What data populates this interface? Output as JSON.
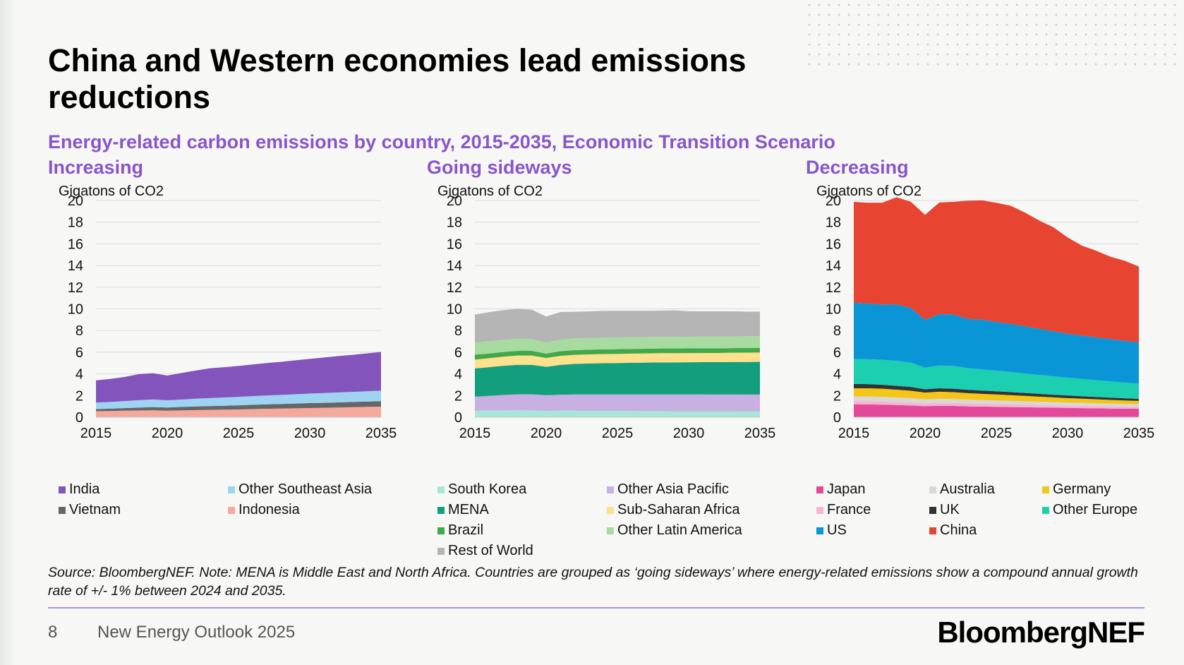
{
  "title": "China and Western economies lead emissions reductions",
  "subtitle": "Energy-related carbon emissions by country, 2015-2035, Economic Transition Scenario",
  "note": "Source: BloombergNEF. Note: MENA is Middle East and North Africa. Countries are grouped as ‘going sideways’ where energy-related emissions show a compound annual growth rate of +/- 1% between 2024 and 2035.",
  "footer": {
    "page_number": "8",
    "text": "New Energy Outlook 2025",
    "brand": "BloombergNEF"
  },
  "colors": {
    "accent_purple": "#8a55c9",
    "rule": "#b18de0"
  },
  "chart_data": [
    {
      "type": "area",
      "stacked": true,
      "title": "Increasing",
      "ylabel": "Gigatons of CO2",
      "ylim": [
        0,
        20
      ],
      "yticks": [
        0,
        2,
        4,
        6,
        8,
        10,
        12,
        14,
        16,
        18,
        20
      ],
      "xticks": [
        2015,
        2020,
        2025,
        2030,
        2035
      ],
      "grid": true,
      "legend_position": "bottom",
      "x": [
        2015,
        2016,
        2017,
        2018,
        2019,
        2020,
        2021,
        2022,
        2023,
        2024,
        2025,
        2026,
        2027,
        2028,
        2029,
        2030,
        2031,
        2032,
        2033,
        2034,
        2035
      ],
      "series": [
        {
          "name": "Indonesia",
          "color": "#f5a99c",
          "values": [
            0.55,
            0.57,
            0.6,
            0.62,
            0.64,
            0.6,
            0.63,
            0.66,
            0.68,
            0.7,
            0.72,
            0.75,
            0.78,
            0.8,
            0.82,
            0.85,
            0.87,
            0.9,
            0.93,
            0.95,
            0.98
          ]
        },
        {
          "name": "Vietnam",
          "color": "#666666",
          "values": [
            0.2,
            0.22,
            0.24,
            0.27,
            0.3,
            0.3,
            0.32,
            0.33,
            0.35,
            0.36,
            0.38,
            0.4,
            0.41,
            0.42,
            0.44,
            0.45,
            0.46,
            0.47,
            0.48,
            0.49,
            0.5
          ]
        },
        {
          "name": "Other Southeast Asia",
          "color": "#9fd3f2",
          "values": [
            0.6,
            0.62,
            0.65,
            0.68,
            0.7,
            0.66,
            0.68,
            0.72,
            0.74,
            0.76,
            0.78,
            0.8,
            0.82,
            0.84,
            0.86,
            0.88,
            0.9,
            0.92,
            0.93,
            0.95,
            0.97
          ]
        },
        {
          "name": "India",
          "color": "#8454bd",
          "values": [
            2.05,
            2.12,
            2.22,
            2.4,
            2.42,
            2.28,
            2.45,
            2.6,
            2.75,
            2.8,
            2.85,
            2.92,
            2.99,
            3.05,
            3.13,
            3.2,
            3.28,
            3.35,
            3.42,
            3.5,
            3.58
          ]
        }
      ]
    },
    {
      "type": "area",
      "stacked": true,
      "title": "Going sideways",
      "ylabel": "Gigatons of CO2",
      "ylim": [
        0,
        20
      ],
      "yticks": [
        0,
        2,
        4,
        6,
        8,
        10,
        12,
        14,
        16,
        18,
        20
      ],
      "xticks": [
        2015,
        2020,
        2025,
        2030,
        2035
      ],
      "grid": true,
      "legend_position": "bottom",
      "x": [
        2015,
        2016,
        2017,
        2018,
        2019,
        2020,
        2021,
        2022,
        2023,
        2024,
        2025,
        2026,
        2027,
        2028,
        2029,
        2030,
        2031,
        2032,
        2033,
        2034,
        2035
      ],
      "series": [
        {
          "name": "South Korea",
          "color": "#a8e6da",
          "values": [
            0.6,
            0.62,
            0.63,
            0.65,
            0.62,
            0.58,
            0.6,
            0.6,
            0.58,
            0.58,
            0.57,
            0.57,
            0.56,
            0.56,
            0.55,
            0.55,
            0.55,
            0.54,
            0.54,
            0.53,
            0.53
          ]
        },
        {
          "name": "Other Asia Pacific",
          "color": "#c8b1e2",
          "values": [
            1.3,
            1.35,
            1.42,
            1.47,
            1.5,
            1.45,
            1.48,
            1.5,
            1.52,
            1.52,
            1.53,
            1.53,
            1.54,
            1.54,
            1.55,
            1.55,
            1.55,
            1.55,
            1.56,
            1.56,
            1.56
          ]
        },
        {
          "name": "MENA",
          "color": "#139e7d",
          "values": [
            2.6,
            2.65,
            2.7,
            2.72,
            2.72,
            2.62,
            2.75,
            2.82,
            2.86,
            2.88,
            2.9,
            2.92,
            2.94,
            2.96,
            2.96,
            2.97,
            2.98,
            2.99,
            3.0,
            3.01,
            3.02
          ]
        },
        {
          "name": "Sub-Saharan Africa",
          "color": "#fde18c",
          "values": [
            0.82,
            0.83,
            0.84,
            0.85,
            0.85,
            0.82,
            0.83,
            0.84,
            0.84,
            0.85,
            0.85,
            0.85,
            0.85,
            0.85,
            0.85,
            0.85,
            0.85,
            0.85,
            0.85,
            0.86,
            0.86
          ]
        },
        {
          "name": "Brazil",
          "color": "#42a84a",
          "values": [
            0.45,
            0.43,
            0.43,
            0.43,
            0.43,
            0.4,
            0.43,
            0.43,
            0.43,
            0.43,
            0.43,
            0.43,
            0.43,
            0.43,
            0.43,
            0.43,
            0.43,
            0.43,
            0.43,
            0.43,
            0.43
          ]
        },
        {
          "name": "Other Latin America",
          "color": "#a8dba0",
          "values": [
            1.1,
            1.12,
            1.12,
            1.12,
            1.1,
            1.02,
            1.07,
            1.08,
            1.08,
            1.08,
            1.08,
            1.08,
            1.08,
            1.08,
            1.08,
            1.08,
            1.08,
            1.08,
            1.08,
            1.08,
            1.08
          ]
        },
        {
          "name": "Rest of World",
          "color": "#b5b5b5",
          "values": [
            2.6,
            2.7,
            2.75,
            2.76,
            2.7,
            2.4,
            2.55,
            2.46,
            2.45,
            2.48,
            2.46,
            2.44,
            2.42,
            2.42,
            2.45,
            2.35,
            2.33,
            2.33,
            2.31,
            2.28,
            2.27
          ]
        }
      ]
    },
    {
      "type": "area",
      "stacked": true,
      "title": "Decreasing",
      "ylabel": "Gigatons of CO2",
      "ylim": [
        0,
        20
      ],
      "yticks": [
        0,
        2,
        4,
        6,
        8,
        10,
        12,
        14,
        16,
        18,
        20
      ],
      "xticks": [
        2015,
        2020,
        2025,
        2030,
        2035
      ],
      "grid": true,
      "legend_position": "bottom",
      "x": [
        2015,
        2016,
        2017,
        2018,
        2019,
        2020,
        2021,
        2022,
        2023,
        2024,
        2025,
        2026,
        2027,
        2028,
        2029,
        2030,
        2031,
        2032,
        2033,
        2034,
        2035
      ],
      "series": [
        {
          "name": "Japan",
          "color": "#e3489a",
          "values": [
            1.2,
            1.18,
            1.16,
            1.12,
            1.08,
            1.02,
            1.05,
            1.04,
            1.0,
            0.98,
            0.96,
            0.94,
            0.92,
            0.9,
            0.88,
            0.86,
            0.84,
            0.82,
            0.8,
            0.79,
            0.78
          ]
        },
        {
          "name": "France",
          "color": "#f6b6d2",
          "values": [
            0.32,
            0.32,
            0.31,
            0.3,
            0.29,
            0.26,
            0.28,
            0.28,
            0.27,
            0.26,
            0.25,
            0.25,
            0.24,
            0.23,
            0.22,
            0.21,
            0.21,
            0.2,
            0.2,
            0.19,
            0.19
          ]
        },
        {
          "name": "Australia",
          "color": "#d8d8d8",
          "values": [
            0.4,
            0.41,
            0.41,
            0.4,
            0.39,
            0.37,
            0.37,
            0.36,
            0.35,
            0.34,
            0.33,
            0.32,
            0.31,
            0.3,
            0.29,
            0.28,
            0.27,
            0.26,
            0.25,
            0.24,
            0.23
          ]
        },
        {
          "name": "Germany",
          "color": "#f5c517",
          "values": [
            0.75,
            0.76,
            0.75,
            0.72,
            0.68,
            0.62,
            0.65,
            0.63,
            0.6,
            0.58,
            0.56,
            0.53,
            0.5,
            0.47,
            0.44,
            0.41,
            0.39,
            0.37,
            0.35,
            0.33,
            0.31
          ]
        },
        {
          "name": "UK",
          "color": "#333333",
          "values": [
            0.4,
            0.38,
            0.37,
            0.36,
            0.35,
            0.31,
            0.32,
            0.32,
            0.31,
            0.3,
            0.29,
            0.28,
            0.27,
            0.26,
            0.25,
            0.24,
            0.23,
            0.22,
            0.21,
            0.2,
            0.19
          ]
        },
        {
          "name": "Other Europe",
          "color": "#1ccfb0",
          "values": [
            2.3,
            2.3,
            2.3,
            2.3,
            2.25,
            2.0,
            2.1,
            2.1,
            2.0,
            1.95,
            1.9,
            1.85,
            1.8,
            1.75,
            1.7,
            1.65,
            1.6,
            1.55,
            1.5,
            1.45,
            1.4
          ]
        },
        {
          "name": "US",
          "color": "#0a96d6",
          "values": [
            5.2,
            5.15,
            5.1,
            5.2,
            5.05,
            4.4,
            4.75,
            4.75,
            4.55,
            4.6,
            4.5,
            4.45,
            4.35,
            4.25,
            4.15,
            4.05,
            4.0,
            3.95,
            3.9,
            3.85,
            3.8
          ]
        },
        {
          "name": "China",
          "color": "#e84432",
          "values": [
            9.3,
            9.3,
            9.4,
            9.9,
            9.8,
            9.7,
            10.3,
            10.4,
            10.9,
            11.0,
            11.0,
            10.9,
            10.5,
            10.0,
            9.6,
            8.9,
            8.3,
            8.0,
            7.6,
            7.4,
            7.0
          ]
        }
      ]
    }
  ],
  "panels": [
    {
      "left": 68,
      "legend_columns": 2,
      "legend": [
        "India",
        "Other Southeast Asia",
        "Vietnam",
        "Indonesia"
      ]
    },
    {
      "left": 605,
      "legend_columns": 2,
      "legend": [
        "South Korea",
        "Other Asia Pacific",
        "MENA",
        "Sub-Saharan Africa",
        "Brazil",
        "Other Latin America",
        "Rest of World"
      ]
    },
    {
      "left": 1142,
      "legend_columns": 3,
      "legend": [
        "Japan",
        "Australia",
        "Germany",
        "France",
        "UK",
        "Other Europe",
        "US",
        "China"
      ]
    }
  ]
}
